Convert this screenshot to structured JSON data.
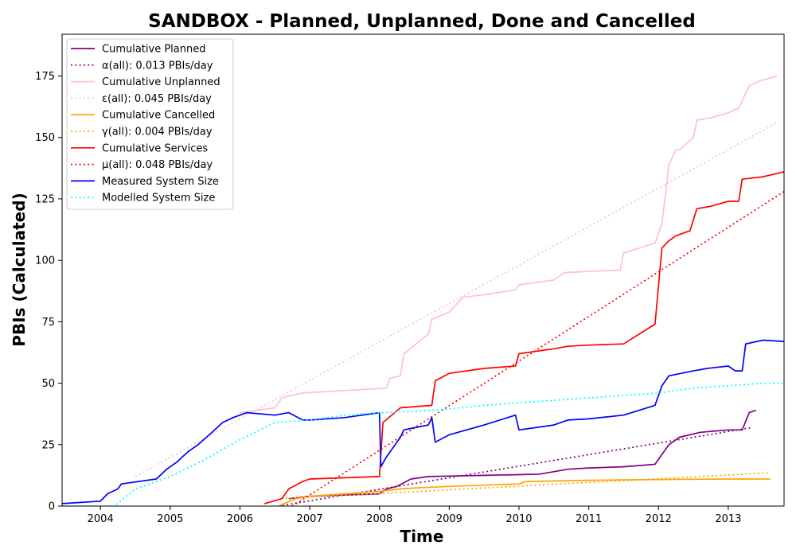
{
  "chart_data": {
    "type": "line",
    "title": "SANDBOX - Planned, Unplanned, Done  and Cancelled",
    "xlabel": "Time",
    "ylabel": "PBIs (Calculated)",
    "xlim": [
      2003.45,
      2013.8
    ],
    "ylim": [
      0,
      192
    ],
    "x_ticks": [
      2004,
      2005,
      2006,
      2007,
      2008,
      2009,
      2010,
      2011,
      2012,
      2013
    ],
    "x_tick_labels": [
      "2004",
      "2005",
      "2006",
      "2007",
      "2008",
      "2009",
      "2010",
      "2011",
      "2012",
      "2013"
    ],
    "y_ticks": [
      0,
      25,
      50,
      75,
      100,
      125,
      150,
      175
    ],
    "y_tick_labels": [
      "0",
      "25",
      "50",
      "75",
      "100",
      "125",
      "150",
      "175"
    ],
    "grid": false,
    "legend_position": "top-left",
    "series": [
      {
        "name": "Cumulative Planned",
        "color": "#800080",
        "style": "solid",
        "x": [
          2006.7,
          2007.0,
          2007.5,
          2008.0,
          2008.1,
          2008.25,
          2008.45,
          2008.7,
          2009.0,
          2009.5,
          2010.0,
          2010.3,
          2010.7,
          2011.0,
          2011.5,
          2011.95,
          2012.05,
          2012.15,
          2012.3,
          2012.6,
          2013.0,
          2013.2,
          2013.3,
          2013.4
        ],
        "y": [
          3,
          4,
          4.5,
          5,
          7,
          8,
          11,
          12,
          12.2,
          12.5,
          12.8,
          13,
          15,
          15.5,
          16,
          17,
          21,
          25,
          28,
          30,
          31,
          31,
          38,
          39
        ]
      },
      {
        "name": "α(all): 0.013 PBIs/day",
        "color": "#800080",
        "style": "dotted",
        "x": [
          2006.55,
          2013.35
        ],
        "y": [
          0,
          32
        ]
      },
      {
        "name": "Cumulative Unplanned",
        "color": "#ffc0cb",
        "style": "solid",
        "x": [
          2006.0,
          2006.5,
          2006.6,
          2006.9,
          2007.5,
          2008.1,
          2008.15,
          2008.3,
          2008.35,
          2008.7,
          2008.75,
          2009.0,
          2009.2,
          2009.5,
          2009.95,
          2010.0,
          2010.5,
          2010.65,
          2011.0,
          2011.45,
          2011.5,
          2011.95,
          2012.05,
          2012.15,
          2012.25,
          2012.3,
          2012.5,
          2012.55,
          2012.75,
          2013.0,
          2013.15,
          2013.25,
          2013.3,
          2013.45,
          2013.7
        ],
        "y": [
          38,
          40,
          44,
          46,
          47,
          48,
          52,
          53,
          62,
          70,
          76,
          79,
          85,
          86,
          88,
          90,
          92,
          95,
          95.5,
          96,
          103,
          107,
          115,
          139,
          145,
          145,
          150,
          157,
          158,
          160,
          162,
          168,
          171,
          173,
          175
        ]
      },
      {
        "name": "ε(all): 0.045 PBIs/day",
        "color": "#ffc0cb",
        "style": "dotted",
        "x": [
          2004.5,
          2013.7
        ],
        "y": [
          12,
          156
        ]
      },
      {
        "name": "Cumulative Cancelled",
        "color": "#ffa500",
        "style": "solid",
        "x": [
          2006.55,
          2006.8,
          2007.0,
          2007.5,
          2008.0,
          2008.3,
          2008.6,
          2009.0,
          2009.5,
          2010.0,
          2010.1,
          2011.0,
          2012.0,
          2013.0,
          2013.6
        ],
        "y": [
          0,
          3,
          4,
          5,
          6,
          7,
          7.5,
          8,
          8.5,
          9,
          10,
          10.5,
          10.8,
          11,
          11
        ]
      },
      {
        "name": "γ(all): 0.004 PBIs/day",
        "color": "#ffa500",
        "style": "dotted",
        "x": [
          2006.6,
          2013.6
        ],
        "y": [
          3,
          13.5
        ]
      },
      {
        "name": "Cumulative Services",
        "color": "#ff0000",
        "style": "solid",
        "x": [
          2006.35,
          2006.6,
          2006.7,
          2006.9,
          2007.0,
          2008.0,
          2008.05,
          2008.3,
          2008.75,
          2008.8,
          2009.0,
          2009.5,
          2009.95,
          2010.0,
          2010.5,
          2010.7,
          2011.0,
          2011.5,
          2011.95,
          2012.05,
          2012.15,
          2012.25,
          2012.45,
          2012.55,
          2012.75,
          2013.0,
          2013.15,
          2013.2,
          2013.5,
          2013.8
        ],
        "y": [
          1,
          3,
          7,
          10,
          11,
          12,
          34,
          40,
          41,
          51,
          54,
          56,
          57,
          62,
          64,
          65,
          65.5,
          66,
          74,
          105,
          108,
          110,
          112,
          121,
          122,
          124,
          124,
          133,
          134,
          136
        ]
      },
      {
        "name": "μ(all): 0.048 PBIs/day",
        "color": "#ff0000",
        "style": "dotted",
        "x": [
          2006.75,
          2013.8
        ],
        "y": [
          0,
          128
        ]
      },
      {
        "name": "Measured System Size",
        "color": "#0000ff",
        "style": "solid",
        "x": [
          2003.45,
          2004.0,
          2004.1,
          2004.25,
          2004.3,
          2004.8,
          2004.95,
          2005.1,
          2005.25,
          2005.4,
          2005.6,
          2005.75,
          2005.9,
          2006.1,
          2006.5,
          2006.7,
          2006.9,
          2007.0,
          2007.5,
          2008.0,
          2008.02,
          2008.1,
          2008.3,
          2008.35,
          2008.7,
          2008.75,
          2008.8,
          2009.0,
          2009.5,
          2009.95,
          2010.0,
          2010.5,
          2010.7,
          2011.0,
          2011.5,
          2011.95,
          2012.05,
          2012.15,
          2012.5,
          2012.7,
          2013.0,
          2013.1,
          2013.2,
          2013.25,
          2013.5,
          2013.8
        ],
        "y": [
          1,
          2,
          5,
          7,
          9,
          11,
          15,
          18,
          22,
          25,
          30,
          34,
          36,
          38,
          37,
          38,
          35,
          35,
          36,
          38,
          16,
          20,
          28,
          31,
          33,
          36,
          26,
          29,
          33,
          37,
          31,
          33,
          35,
          35.5,
          37,
          41,
          49,
          53,
          55,
          56,
          57,
          55,
          55,
          66,
          67.5,
          67
        ]
      },
      {
        "name": "Modelled System Size",
        "color": "#00ffff",
        "style": "dotted",
        "x": [
          2003.45,
          2004.2,
          2004.5,
          2005.0,
          2005.5,
          2006.0,
          2006.5,
          2007.0,
          2007.5,
          2008.0,
          2008.5,
          2009.0,
          2009.5,
          2010.0,
          2010.5,
          2011.0,
          2011.5,
          2012.0,
          2012.5,
          2013.0,
          2013.5,
          2013.8
        ],
        "y": [
          0,
          0,
          7,
          12,
          19,
          27,
          34,
          35,
          37,
          38,
          38.5,
          39.5,
          41,
          42,
          43,
          44,
          45,
          46,
          48,
          49,
          50,
          50
        ]
      }
    ]
  }
}
